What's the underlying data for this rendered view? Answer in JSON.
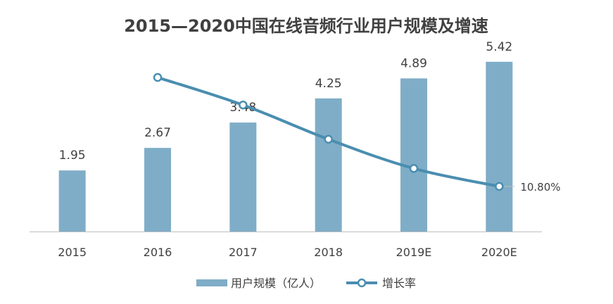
{
  "chart_data": {
    "type": "bar",
    "title": "2015—2020中国在线音频行业用户规模及增速",
    "categories": [
      "2015",
      "2016",
      "2017",
      "2018",
      "2019E",
      "2020E"
    ],
    "series": [
      {
        "name": "用户规模（亿人）",
        "type": "bar",
        "values": [
          1.95,
          2.67,
          3.48,
          4.25,
          4.89,
          5.42
        ],
        "labels": [
          "1.95",
          "2.67",
          "3.48",
          "4.25",
          "4.89",
          "5.42"
        ],
        "color": "#7fadc7"
      },
      {
        "name": "增长率",
        "type": "line",
        "values": [
          null,
          36.9,
          30.3,
          22.1,
          15.1,
          10.8
        ],
        "labels": [
          null,
          null,
          null,
          null,
          null,
          "10.80%"
        ],
        "color": "#4a8eb0"
      }
    ],
    "ylim": [
      0,
      6
    ],
    "y2lim": [
      0,
      45
    ],
    "legend_position": "bottom"
  },
  "colors": {
    "bar": "#7fadc7",
    "line": "#4a8eb0",
    "axis": "#bfbfbf",
    "text": "#404040"
  }
}
